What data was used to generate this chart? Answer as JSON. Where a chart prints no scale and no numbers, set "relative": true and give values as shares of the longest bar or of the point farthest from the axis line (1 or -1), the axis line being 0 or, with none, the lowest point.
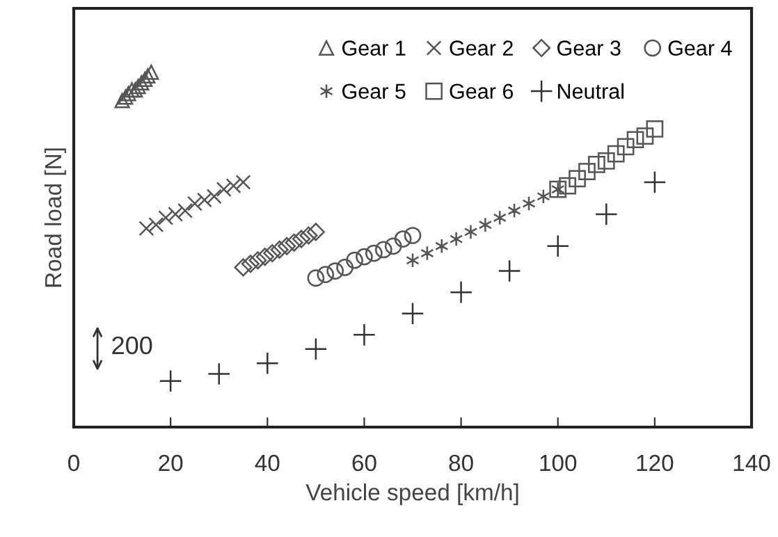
{
  "chart_data": {
    "type": "scatter",
    "relative": true,
    "xlabel": "Vehicle speed [km/h]",
    "ylabel": "Road load [N]",
    "xlim": [
      0,
      140
    ],
    "xticks": [
      0,
      20,
      40,
      60,
      80,
      100,
      120,
      140
    ],
    "tick_labels": "x",
    "grid": false,
    "legend": "top right",
    "annotations": [
      "200"
    ],
    "series": [
      {
        "name": "Gear 1",
        "color": "#555555",
        "marker": "triangle",
        "x": [
          10,
          10.7,
          11.3,
          12,
          12.7,
          13.3,
          14,
          14.7,
          15.3,
          16
        ],
        "values": [
          0.92,
          0.93,
          0.94,
          0.95,
          0.95,
          0.96,
          0.97,
          0.98,
          0.99,
          1.0
        ]
      },
      {
        "name": "Gear 2",
        "color": "#555555",
        "marker": "x",
        "x": [
          15,
          17,
          19,
          21,
          23,
          25,
          27,
          29,
          31,
          33,
          35
        ],
        "values": [
          0.56,
          0.57,
          0.59,
          0.6,
          0.61,
          0.63,
          0.64,
          0.65,
          0.67,
          0.68,
          0.69
        ]
      },
      {
        "name": "Gear 3",
        "color": "#555555",
        "marker": "diamond",
        "x": [
          35,
          36.5,
          38,
          39.5,
          41,
          42.5,
          44,
          45.5,
          47,
          48.5,
          50
        ],
        "values": [
          0.45,
          0.46,
          0.47,
          0.48,
          0.49,
          0.5,
          0.51,
          0.52,
          0.53,
          0.54,
          0.55
        ]
      },
      {
        "name": "Gear 4",
        "color": "#555555",
        "marker": "circle",
        "x": [
          50,
          52,
          54,
          56,
          58,
          60,
          62,
          64,
          66,
          68,
          70
        ],
        "values": [
          0.42,
          0.43,
          0.44,
          0.45,
          0.47,
          0.48,
          0.49,
          0.5,
          0.51,
          0.53,
          0.54
        ]
      },
      {
        "name": "Gear 5",
        "color": "#555555",
        "marker": "cross",
        "x": [
          70,
          73,
          76,
          79,
          82,
          85,
          88,
          91,
          94,
          97,
          100
        ],
        "values": [
          0.47,
          0.49,
          0.51,
          0.53,
          0.55,
          0.57,
          0.59,
          0.61,
          0.63,
          0.65,
          0.67
        ]
      },
      {
        "name": "Gear 6",
        "color": "#555555",
        "marker": "square",
        "x": [
          100,
          102,
          104,
          106,
          108,
          110,
          112,
          114,
          116,
          118,
          120
        ],
        "values": [
          0.67,
          0.68,
          0.7,
          0.72,
          0.74,
          0.75,
          0.77,
          0.79,
          0.81,
          0.82,
          0.84
        ]
      },
      {
        "name": "Neutral",
        "color": "#333333",
        "marker": "plus",
        "x": [
          20,
          30,
          40,
          50,
          60,
          70,
          80,
          90,
          100,
          110,
          120
        ],
        "values": [
          0.13,
          0.15,
          0.18,
          0.22,
          0.26,
          0.32,
          0.38,
          0.44,
          0.51,
          0.6,
          0.69
        ]
      }
    ]
  }
}
